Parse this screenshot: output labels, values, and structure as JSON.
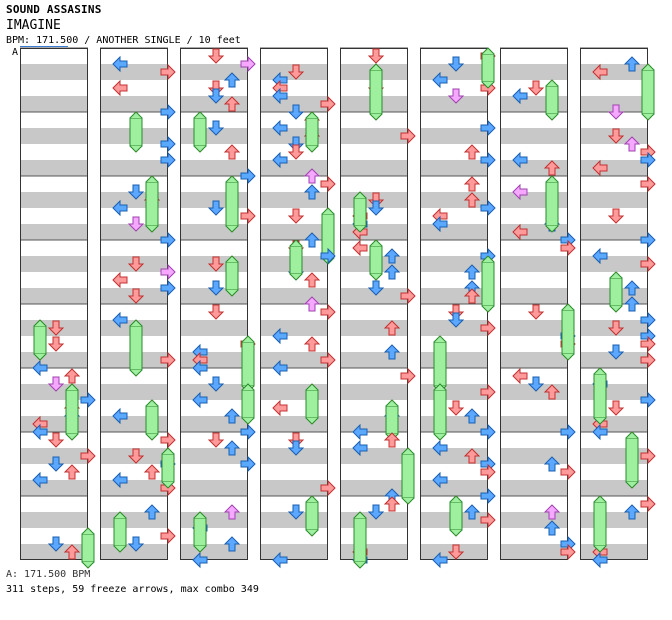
{
  "header": {
    "artist": "SOUND ASSASINS",
    "title": "IMAGINE",
    "info": "BPM: 171.500 / ANOTHER SINGLE / 10 feet"
  },
  "chart": {
    "speed_marker": "A",
    "columns": 8,
    "measures_per_column": 8,
    "first_measure_offset": 4,
    "arrow_colors": {
      "quarter": "#ff9a9a",
      "eighth": "#5aa8ff",
      "sixteenth": "#f6a8ff",
      "freeze": "#9ef09e"
    },
    "stripe_colors": [
      "#ffffff",
      "#c8c8c8"
    ]
  },
  "footer": {
    "bpm_line": "A: 171.500 BPM",
    "stats": "311 steps, 59 freeze arrows, max combo 349"
  }
}
